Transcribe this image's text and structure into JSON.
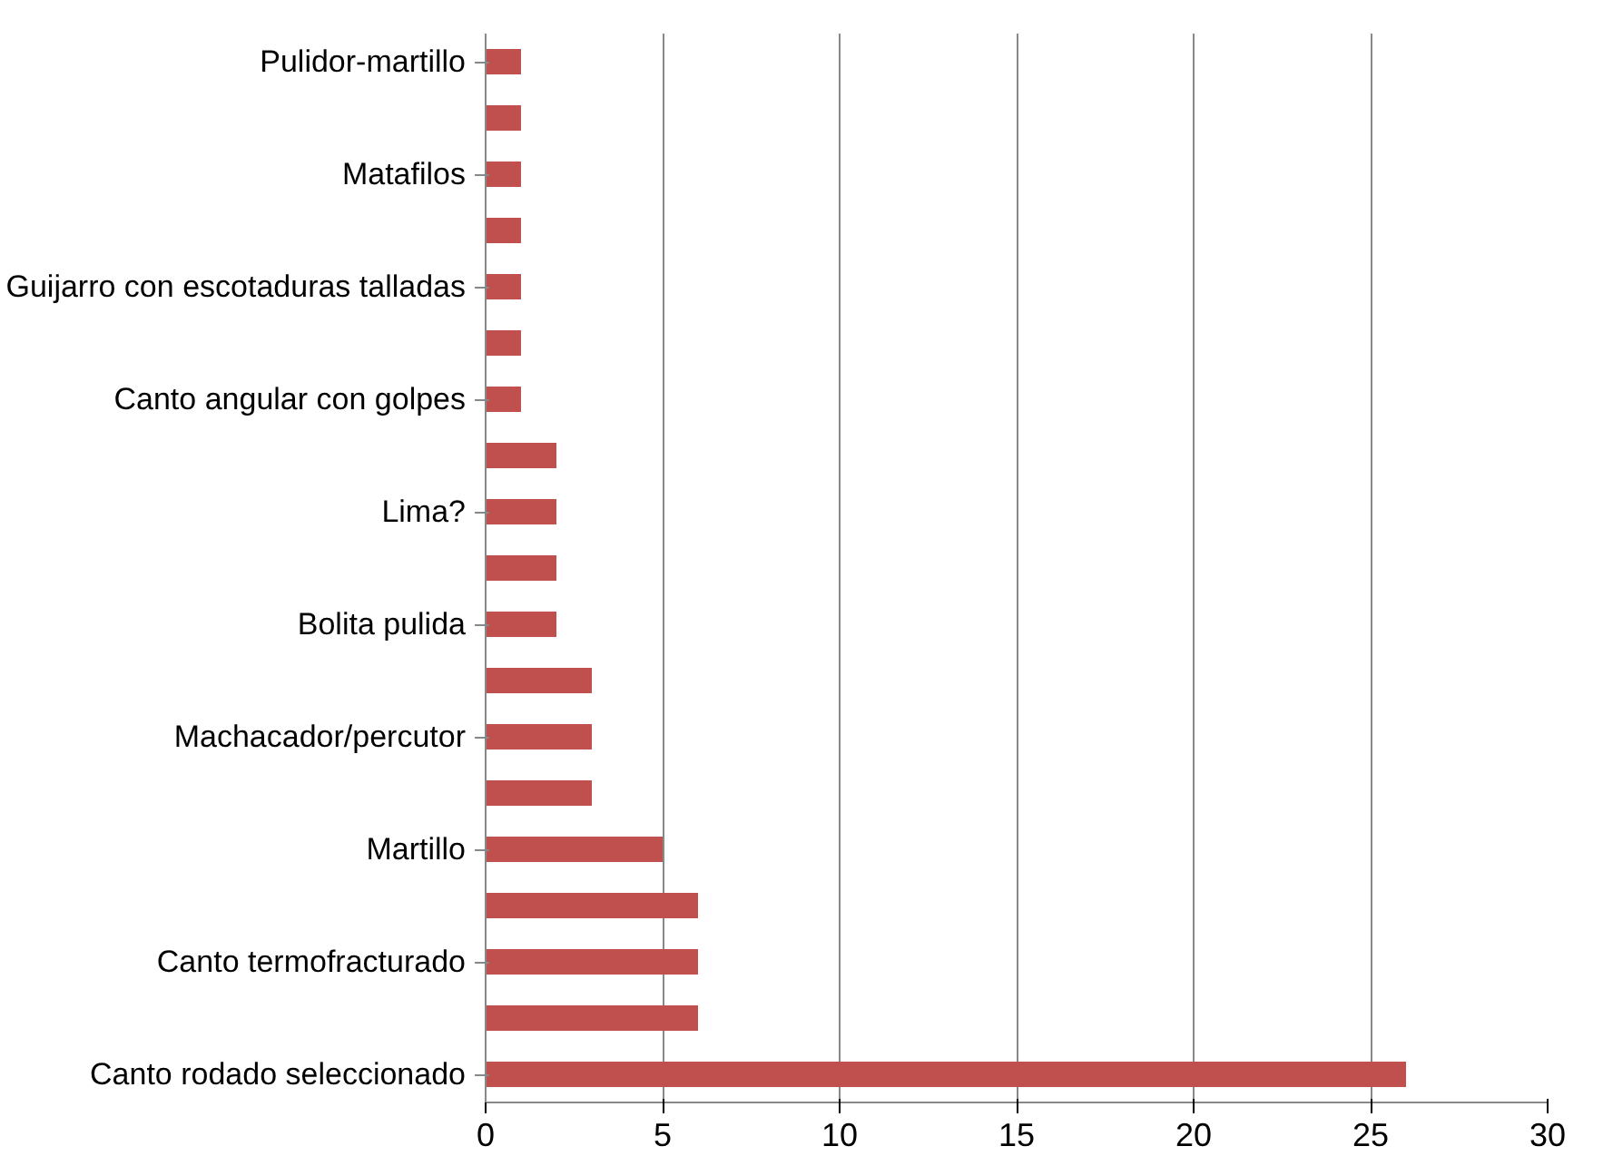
{
  "chart_data": {
    "type": "bar",
    "orientation": "horizontal",
    "categories": [
      "Pulidor-martillo",
      null,
      "Matafilos",
      null,
      "Guijarro con escotaduras talladas",
      null,
      "Canto angular con golpes",
      null,
      "Lima?",
      null,
      "Bolita pulida",
      null,
      "Machacador/percutor",
      null,
      "Martillo",
      null,
      "Canto termofracturado",
      null,
      "Canto rodado seleccionado"
    ],
    "values": [
      1,
      1,
      1,
      1,
      1,
      1,
      1,
      2,
      2,
      2,
      2,
      3,
      3,
      3,
      5,
      6,
      6,
      6,
      26
    ],
    "color": "#c0504d",
    "xlim": [
      0,
      30
    ],
    "xticks": [
      0,
      5,
      10,
      15,
      20,
      25,
      30
    ],
    "grid": "x"
  }
}
